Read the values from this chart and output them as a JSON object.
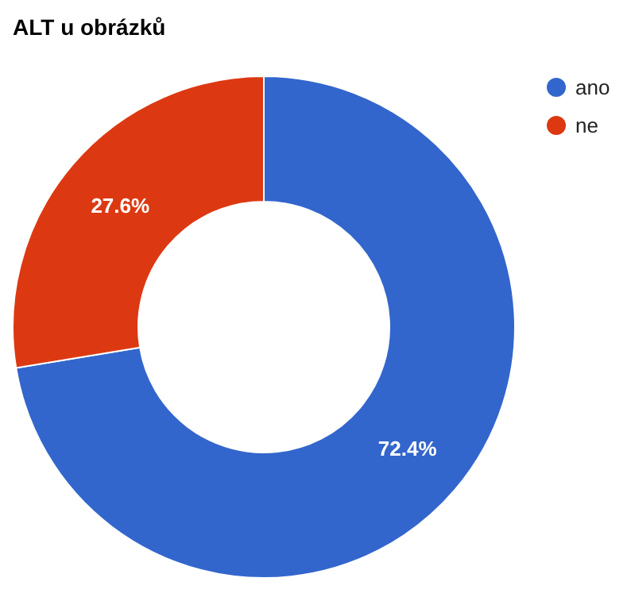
{
  "chart_data": {
    "type": "donut",
    "title": "ALT u obrázků",
    "categories": [
      "ano",
      "ne"
    ],
    "values": [
      72.4,
      27.6
    ],
    "colors": [
      "#3366cc",
      "#dc3912"
    ],
    "value_labels": [
      "72.4%",
      "27.6%"
    ],
    "legend": "top right"
  }
}
